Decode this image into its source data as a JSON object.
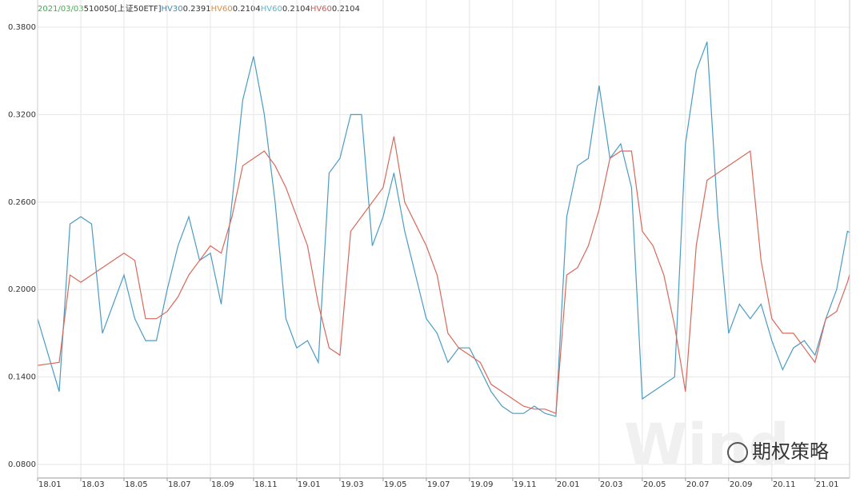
{
  "chart_data": {
    "type": "line",
    "header": [
      {
        "text": "2021/03/03",
        "color": "#3cb04a"
      },
      {
        "text": "510050[上证50ETF]",
        "color": "#333333"
      },
      {
        "text": "HV30",
        "color": "#3a8fc4"
      },
      {
        "text": "0.2391",
        "color": "#333333"
      },
      {
        "text": "HV60",
        "color": "#f08a24"
      },
      {
        "text": "0.2104",
        "color": "#333333"
      },
      {
        "text": "HV60",
        "color": "#4bbcd0"
      },
      {
        "text": "0.2104",
        "color": "#333333"
      },
      {
        "text": "HV60",
        "color": "#d9534f"
      },
      {
        "text": "0.2104",
        "color": "#333333"
      }
    ],
    "watermark": [
      "Wind",
      "期权策略"
    ],
    "x": [
      0,
      0.5,
      1,
      1.5,
      2,
      2.5,
      3,
      3.5,
      4,
      4.5,
      5,
      5.5,
      6,
      6.5,
      7,
      7.5,
      8,
      8.5,
      9,
      9.5,
      10,
      10.5,
      11,
      11.5,
      12,
      12.5,
      13,
      13.5,
      14,
      14.5,
      15,
      15.5,
      16,
      16.5,
      17,
      17.5,
      18,
      18.5,
      19,
      19.5,
      20,
      20.5,
      21,
      21.5,
      22,
      22.5,
      23,
      23.5,
      24,
      24.5,
      25,
      25.5,
      26,
      26.5,
      27,
      27.5,
      28,
      28.5,
      29,
      29.5,
      30,
      30.5,
      31,
      31.5,
      32,
      32.5,
      33,
      33.5,
      34,
      34.5,
      35,
      35.5,
      36,
      36.5,
      37,
      37.5,
      37.6
    ],
    "series": [
      {
        "name": "HV30",
        "color": "#4a9cc4",
        "values": [
          0.18,
          0.155,
          0.13,
          0.245,
          0.25,
          0.245,
          0.17,
          0.19,
          0.21,
          0.18,
          0.165,
          0.165,
          0.2,
          0.23,
          0.25,
          0.22,
          0.225,
          0.19,
          0.26,
          0.33,
          0.36,
          0.32,
          0.26,
          0.18,
          0.16,
          0.165,
          0.15,
          0.28,
          0.29,
          0.32,
          0.32,
          0.23,
          0.25,
          0.28,
          0.24,
          0.21,
          0.18,
          0.17,
          0.15,
          0.16,
          0.16,
          0.145,
          0.13,
          0.12,
          0.115,
          0.115,
          0.12,
          0.115,
          0.113,
          0.25,
          0.285,
          0.29,
          0.34,
          0.29,
          0.3,
          0.27,
          0.125,
          0.13,
          0.135,
          0.14,
          0.3,
          0.35,
          0.37,
          0.25,
          0.17,
          0.19,
          0.18,
          0.19,
          0.165,
          0.145,
          0.16,
          0.165,
          0.155,
          0.18,
          0.2,
          0.24,
          0.2391
        ]
      },
      {
        "name": "HV60",
        "color": "#d9685a",
        "values": [
          0.148,
          0.149,
          0.15,
          0.21,
          0.205,
          0.21,
          0.215,
          0.22,
          0.225,
          0.22,
          0.18,
          0.18,
          0.185,
          0.195,
          0.21,
          0.22,
          0.23,
          0.225,
          0.25,
          0.285,
          0.29,
          0.295,
          0.285,
          0.27,
          0.25,
          0.23,
          0.19,
          0.16,
          0.155,
          0.24,
          0.25,
          0.26,
          0.27,
          0.305,
          0.26,
          0.245,
          0.23,
          0.21,
          0.17,
          0.16,
          0.155,
          0.15,
          0.135,
          0.13,
          0.125,
          0.12,
          0.118,
          0.118,
          0.115,
          0.21,
          0.215,
          0.23,
          0.255,
          0.29,
          0.295,
          0.295,
          0.24,
          0.23,
          0.21,
          0.175,
          0.13,
          0.23,
          0.275,
          0.28,
          0.285,
          0.29,
          0.295,
          0.22,
          0.18,
          0.17,
          0.17,
          0.16,
          0.15,
          0.18,
          0.185,
          0.205,
          0.2104
        ]
      }
    ],
    "xlim": [
      0,
      37.6
    ],
    "xticks": [
      {
        "value": 0,
        "label": "18.01"
      },
      {
        "value": 2,
        "label": "18.03"
      },
      {
        "value": 4,
        "label": "18.05"
      },
      {
        "value": 6,
        "label": "18.07"
      },
      {
        "value": 8,
        "label": "18.09"
      },
      {
        "value": 10,
        "label": "18.11"
      },
      {
        "value": 12,
        "label": "19.01"
      },
      {
        "value": 14,
        "label": "19.03"
      },
      {
        "value": 16,
        "label": "19.05"
      },
      {
        "value": 18,
        "label": "19.07"
      },
      {
        "value": 20,
        "label": "19.09"
      },
      {
        "value": 22,
        "label": "19.11"
      },
      {
        "value": 24,
        "label": "20.01"
      },
      {
        "value": 26,
        "label": "20.03"
      },
      {
        "value": 28,
        "label": "20.05"
      },
      {
        "value": 30,
        "label": "20.07"
      },
      {
        "value": 32,
        "label": "20.09"
      },
      {
        "value": 34,
        "label": "20.11"
      },
      {
        "value": 36,
        "label": "21.01"
      }
    ],
    "ylim": [
      0.0707,
      0.3866
    ],
    "yticks": [
      {
        "value": 0.08,
        "label": "0.0800"
      },
      {
        "value": 0.14,
        "label": "0.1400"
      },
      {
        "value": 0.2,
        "label": "0.2000"
      },
      {
        "value": 0.26,
        "label": "0.2600"
      },
      {
        "value": 0.32,
        "label": "0.3200"
      },
      {
        "value": 0.38,
        "label": "0.3800"
      }
    ],
    "grid": true
  }
}
